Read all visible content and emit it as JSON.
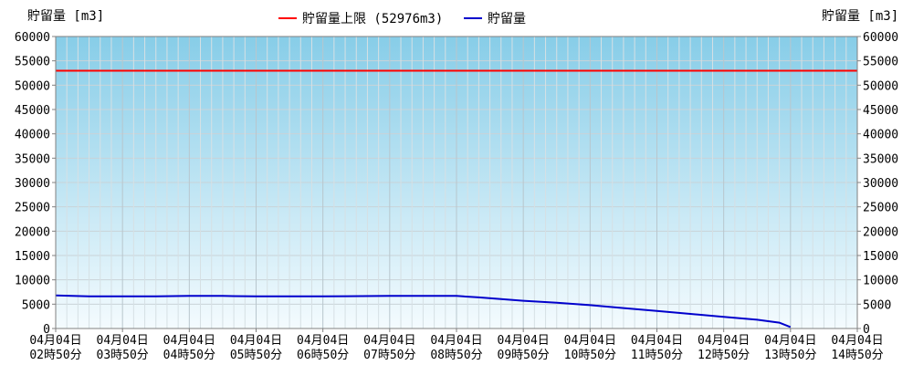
{
  "chart_data": {
    "type": "line",
    "ylabel_left": "貯留量 [m3]",
    "ylabel_right": "貯留量 [m3]",
    "ylim": [
      0,
      60000
    ],
    "yticks": [
      0,
      5000,
      10000,
      15000,
      20000,
      25000,
      30000,
      35000,
      40000,
      45000,
      50000,
      55000,
      60000
    ],
    "ytick_labels": [
      "0",
      "5000",
      "10000",
      "15000",
      "20000",
      "25000",
      "30000",
      "35000",
      "40000",
      "45000",
      "50000",
      "55000",
      "60000"
    ],
    "xlim": [
      "04月04日 02時50分",
      "04月04日 14時50分"
    ],
    "xticks": [
      {
        "date": "04月04日",
        "time": "02時50分"
      },
      {
        "date": "04月04日",
        "time": "03時50分"
      },
      {
        "date": "04月04日",
        "time": "04時50分"
      },
      {
        "date": "04月04日",
        "time": "05時50分"
      },
      {
        "date": "04月04日",
        "time": "06時50分"
      },
      {
        "date": "04月04日",
        "time": "07時50分"
      },
      {
        "date": "04月04日",
        "time": "08時50分"
      },
      {
        "date": "04月04日",
        "time": "09時50分"
      },
      {
        "date": "04月04日",
        "time": "10時50分"
      },
      {
        "date": "04月04日",
        "time": "11時50分"
      },
      {
        "date": "04月04日",
        "time": "12時50分"
      },
      {
        "date": "04月04日",
        "time": "13時50分"
      },
      {
        "date": "04月04日",
        "time": "14時50分"
      }
    ],
    "legend_position": "top-center",
    "grid": true,
    "series": [
      {
        "name": "貯留量上限 (52976m3)",
        "color": "#ff0000",
        "x": [
          "04月04日 02時50分",
          "04月04日 14時50分"
        ],
        "values": [
          52976,
          52976
        ]
      },
      {
        "name": "貯留量",
        "color": "#0000cc",
        "x": [
          "04月04日 02時50分",
          "04月04日 03時20分",
          "04月04日 03時50分",
          "04月04日 04時20分",
          "04月04日 04時50分",
          "04月04日 05時20分",
          "04月04日 05時50分",
          "04月04日 06時50分",
          "04月04日 07時50分",
          "04月04日 08時50分",
          "04月04日 09時10分",
          "04月04日 09時50分",
          "04月04日 10時20分",
          "04月04日 10時50分",
          "04月04日 11時20分",
          "04月04日 11時50分",
          "04月04日 12時20分",
          "04月04日 12時50分",
          "04月04日 13時20分",
          "04月04日 13時40分",
          "04月04日 13時50分"
        ],
        "values": [
          6800,
          6600,
          6600,
          6600,
          6700,
          6700,
          6600,
          6600,
          6700,
          6700,
          6400,
          5700,
          5300,
          4800,
          4200,
          3600,
          3000,
          2400,
          1800,
          1200,
          300
        ]
      }
    ]
  }
}
